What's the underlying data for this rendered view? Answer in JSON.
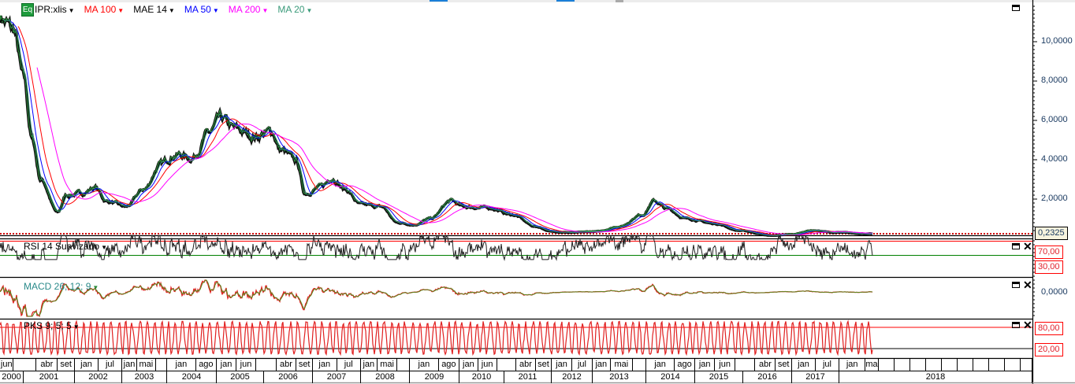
{
  "legend": {
    "badge": "Eq",
    "items": [
      {
        "label": "IPR:xlis",
        "color": "#000000"
      },
      {
        "label": "MA 100",
        "color": "#ff0000"
      },
      {
        "label": "MAE 14",
        "color": "#000000"
      },
      {
        "label": "MA 50",
        "color": "#0000ff"
      },
      {
        "label": "MA 200",
        "color": "#ff00ff"
      },
      {
        "label": "MA 20",
        "color": "#3a9a7a"
      }
    ]
  },
  "main_axis": {
    "ticks": [
      {
        "value": 2,
        "label": "2,0000"
      },
      {
        "value": 4,
        "label": "4,0000"
      },
      {
        "value": 6,
        "label": "6,0000"
      },
      {
        "value": 8,
        "label": "8,0000"
      },
      {
        "value": 10,
        "label": "10,0000"
      }
    ],
    "last_value": 0.2325,
    "last_value_label": "0,2325"
  },
  "rsi": {
    "label": "RSI 14 Suavizado",
    "levels": [
      {
        "value": 70,
        "label": "70,00"
      },
      {
        "value": 30,
        "label": "30,00"
      }
    ]
  },
  "macd": {
    "label": "MACD 26; 12; 9",
    "zero_label": "0,0000"
  },
  "pks": {
    "label": "PKS 9; 5; 5",
    "levels": [
      {
        "value": 80,
        "label": "80,00"
      },
      {
        "value": 20,
        "label": "20,00"
      }
    ]
  },
  "time_axis": {
    "months": [
      {
        "label": "jun",
        "date": "2000-06"
      },
      {
        "label": "",
        "date": "2000-10"
      },
      {
        "label": "abr",
        "date": "2001-04"
      },
      {
        "label": "set",
        "date": "2001-09"
      },
      {
        "label": "jan",
        "date": "2002-01"
      },
      {
        "label": "jul",
        "date": "2002-07"
      },
      {
        "label": "jan",
        "date": "2003-01"
      },
      {
        "label": "mai",
        "date": "2003-05"
      },
      {
        "label": "",
        "date": "2003-10"
      },
      {
        "label": "jan",
        "date": "2004-01"
      },
      {
        "label": "ago",
        "date": "2004-08"
      },
      {
        "label": "jan",
        "date": "2005-01"
      },
      {
        "label": "jun",
        "date": "2005-06"
      },
      {
        "label": "",
        "date": "2005-11"
      },
      {
        "label": "abr",
        "date": "2006-04"
      },
      {
        "label": "set",
        "date": "2006-09"
      },
      {
        "label": "jan",
        "date": "2007-01"
      },
      {
        "label": "jul",
        "date": "2007-07"
      },
      {
        "label": "jan",
        "date": "2008-01"
      },
      {
        "label": "mai",
        "date": "2008-05"
      },
      {
        "label": "",
        "date": "2008-10"
      },
      {
        "label": "jan",
        "date": "2009-01"
      },
      {
        "label": "ago",
        "date": "2009-08"
      },
      {
        "label": "jan",
        "date": "2010-01"
      },
      {
        "label": "jun",
        "date": "2010-06"
      },
      {
        "label": "",
        "date": "2010-11"
      },
      {
        "label": "abr",
        "date": "2011-04"
      },
      {
        "label": "set",
        "date": "2011-09"
      },
      {
        "label": "jan",
        "date": "2012-01"
      },
      {
        "label": "jul",
        "date": "2012-07"
      },
      {
        "label": "jan",
        "date": "2013-01"
      },
      {
        "label": "mai",
        "date": "2013-05"
      },
      {
        "label": "",
        "date": "2013-10"
      },
      {
        "label": "jan",
        "date": "2014-01"
      },
      {
        "label": "ago",
        "date": "2014-08"
      },
      {
        "label": "jan",
        "date": "2015-01"
      },
      {
        "label": "jun",
        "date": "2015-06"
      },
      {
        "label": "",
        "date": "2015-11"
      },
      {
        "label": "abr",
        "date": "2016-04"
      },
      {
        "label": "set",
        "date": "2016-09"
      },
      {
        "label": "jan",
        "date": "2017-01"
      },
      {
        "label": "jul",
        "date": "2017-07"
      },
      {
        "label": "jan",
        "date": "2018-01"
      },
      {
        "label": "mai",
        "date": "2018-05"
      }
    ],
    "years": [
      "2000",
      "2001",
      "2002",
      "2003",
      "2004",
      "2005",
      "2006",
      "2007",
      "2008",
      "2009",
      "2010",
      "2011",
      "2012",
      "2013",
      "2014",
      "2015",
      "2016",
      "2017",
      "2018"
    ]
  },
  "chart_data": {
    "type": "line",
    "title": "",
    "xlabel": "",
    "ylabel": "",
    "ylim": [
      0,
      12
    ],
    "grid": false,
    "legend_placement": "top-left",
    "series": [
      {
        "name": "IPR:xlis",
        "color": "#000000",
        "points": [
          [
            "2000-06",
            11.3
          ],
          [
            "2000-10",
            10.5
          ],
          [
            "2001-01",
            8.0
          ],
          [
            "2001-03",
            5.0
          ],
          [
            "2001-05",
            3.0
          ],
          [
            "2001-09",
            1.3
          ],
          [
            "2001-11",
            2.2
          ],
          [
            "2002-03",
            2.3
          ],
          [
            "2002-06",
            2.6
          ],
          [
            "2002-09",
            1.9
          ],
          [
            "2003-02",
            1.6
          ],
          [
            "2003-07",
            2.5
          ],
          [
            "2003-11",
            3.7
          ],
          [
            "2004-03",
            4.3
          ],
          [
            "2004-07",
            4.1
          ],
          [
            "2004-11",
            5.3
          ],
          [
            "2005-02",
            6.0
          ],
          [
            "2005-06",
            5.5
          ],
          [
            "2005-10",
            5.2
          ],
          [
            "2006-03",
            5.4
          ],
          [
            "2006-05",
            4.5
          ],
          [
            "2006-09",
            3.9
          ],
          [
            "2006-11",
            2.3
          ],
          [
            "2007-03",
            2.6
          ],
          [
            "2007-06",
            3.1
          ],
          [
            "2007-09",
            2.5
          ],
          [
            "2008-01",
            1.7
          ],
          [
            "2008-06",
            1.6
          ],
          [
            "2008-10",
            0.8
          ],
          [
            "2009-02",
            0.7
          ],
          [
            "2009-06",
            1.0
          ],
          [
            "2009-11",
            1.9
          ],
          [
            "2010-02",
            1.6
          ],
          [
            "2010-09",
            1.55
          ],
          [
            "2011-03",
            1.2
          ],
          [
            "2011-09",
            0.6
          ],
          [
            "2012-01",
            0.35
          ],
          [
            "2012-07",
            0.3
          ],
          [
            "2013-02",
            0.35
          ],
          [
            "2013-07",
            0.6
          ],
          [
            "2013-12",
            1.2
          ],
          [
            "2014-03",
            1.9
          ],
          [
            "2014-06",
            1.5
          ],
          [
            "2014-11",
            1.0
          ],
          [
            "2015-06",
            0.75
          ],
          [
            "2015-12",
            0.4
          ],
          [
            "2016-08",
            0.15
          ],
          [
            "2017-01",
            0.2
          ],
          [
            "2017-06",
            0.4
          ],
          [
            "2017-12",
            0.3
          ],
          [
            "2018-06",
            0.2325
          ]
        ]
      },
      {
        "name": "MA 100",
        "color": "#ff0000"
      },
      {
        "name": "MAE 14",
        "color": "#000000"
      },
      {
        "name": "MA 50",
        "color": "#0000ff"
      },
      {
        "name": "MA 200",
        "color": "#ff00ff"
      },
      {
        "name": "MA 20",
        "color": "#3a9a7a"
      }
    ]
  }
}
